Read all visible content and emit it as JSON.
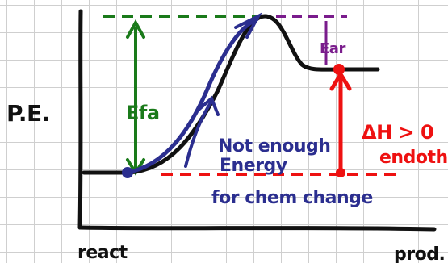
{
  "diagram": {
    "y_axis_label": "P.E.",
    "x_start_label": "react",
    "x_end_label": "prod.",
    "forward_activation_label": "Efa",
    "reverse_activation_label": "Ear",
    "enthalpy_label": "ΔH > 0",
    "enthalpy_note": "endoth",
    "energy_note_lines": [
      "Not enough",
      "Energy",
      "for chem change"
    ],
    "colors": {
      "curve": "#111111",
      "forward_activation": "#1a7a1a",
      "reverse_activation": "#7a1c8c",
      "enthalpy": "#ee1111",
      "annotation": "#2b2e8f",
      "grid": "#cfcfcf"
    }
  }
}
